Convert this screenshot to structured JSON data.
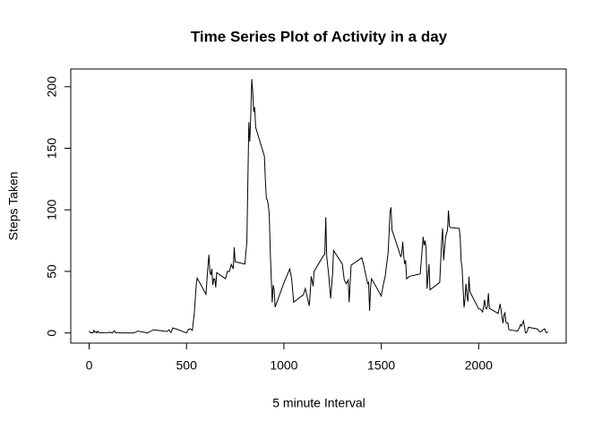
{
  "chart_data": {
    "type": "line",
    "title": "Time Series Plot of Activity in a day",
    "x_label": "5 minute Interval",
    "y_label": "Steps Taken",
    "color": "#000000",
    "x": [
      0,
      5,
      10,
      15,
      20,
      25,
      30,
      35,
      40,
      45,
      50,
      55,
      100,
      105,
      110,
      115,
      120,
      125,
      130,
      135,
      140,
      145,
      150,
      155,
      200,
      230,
      250,
      300,
      330,
      400,
      410,
      420,
      430,
      440,
      450,
      500,
      510,
      520,
      530,
      540,
      550,
      555,
      600,
      610,
      615,
      620,
      625,
      630,
      635,
      640,
      645,
      650,
      655,
      700,
      710,
      720,
      730,
      740,
      745,
      750,
      800,
      810,
      820,
      825,
      830,
      835,
      840,
      845,
      850,
      855,
      900,
      905,
      910,
      915,
      920,
      925,
      930,
      935,
      940,
      945,
      950,
      955,
      1000,
      1030,
      1040,
      1050,
      1100,
      1110,
      1130,
      1135,
      1140,
      1150,
      1155,
      1200,
      1210,
      1215,
      1220,
      1230,
      1240,
      1250,
      1255,
      1300,
      1310,
      1320,
      1330,
      1335,
      1345,
      1400,
      1410,
      1430,
      1435,
      1440,
      1445,
      1450,
      1500,
      1510,
      1520,
      1535,
      1540,
      1545,
      1550,
      1555,
      1600,
      1605,
      1610,
      1615,
      1620,
      1625,
      1630,
      1645,
      1700,
      1710,
      1715,
      1720,
      1725,
      1730,
      1735,
      1745,
      1750,
      1800,
      1805,
      1810,
      1815,
      1820,
      1830,
      1840,
      1845,
      1850,
      1855,
      1900,
      1905,
      1910,
      1915,
      1920,
      1925,
      1930,
      1935,
      1940,
      1945,
      1950,
      1955,
      2000,
      2010,
      2020,
      2025,
      2030,
      2035,
      2040,
      2045,
      2050,
      2055,
      2100,
      2110,
      2115,
      2120,
      2125,
      2130,
      2135,
      2140,
      2145,
      2150,
      2155,
      2200,
      2210,
      2215,
      2220,
      2230,
      2240,
      2245,
      2250,
      2255,
      2300,
      2315,
      2325,
      2330,
      2340,
      2345,
      2350,
      2355
    ],
    "values": [
      1.7,
      0.3,
      0.1,
      0.2,
      0.1,
      2.1,
      0.5,
      0.9,
      0,
      1.5,
      0.3,
      0.1,
      0.3,
      0.7,
      0.2,
      0.3,
      0,
      1.1,
      1.8,
      0.2,
      0.2,
      0.4,
      0.3,
      0,
      0,
      0,
      1.5,
      0,
      2.6,
      1.2,
      2.6,
      0.3,
      4.1,
      3.5,
      3.1,
      0,
      3,
      3.3,
      2.1,
      16,
      39.5,
      44.5,
      31.5,
      53.8,
      63.5,
      50,
      47,
      52,
      39,
      44,
      44,
      37,
      49,
      44,
      50,
      49.9,
      55.7,
      52,
      69.5,
      57.8,
      56,
      74.7,
      171.2,
      155.4,
      177.3,
      206.2,
      195.9,
      179.6,
      183.4,
      167,
      143.5,
      124,
      109,
      108,
      103.7,
      96,
      66.2,
      45.2,
      24.8,
      38.8,
      35,
      21,
      40.6,
      52,
      44,
      25,
      31,
      36,
      22,
      32,
      46,
      38,
      50,
      62,
      64,
      94,
      62,
      47,
      28,
      48,
      67,
      56,
      43,
      40,
      43,
      25,
      55,
      61,
      55,
      40,
      41,
      18,
      37,
      44,
      30,
      39,
      46,
      65,
      81,
      98.7,
      102,
      83.8,
      62,
      64,
      74,
      63,
      56,
      59,
      44,
      46,
      48,
      68,
      78,
      71,
      75,
      69,
      36,
      56,
      35,
      41,
      58,
      74.7,
      85,
      59,
      77.7,
      83.8,
      99.5,
      86.6,
      85.6,
      84.9,
      78,
      58,
      53,
      36,
      20.7,
      27.4,
      40,
      30,
      25.5,
      45.7,
      33.5,
      19.6,
      19.3,
      17,
      21,
      27,
      21,
      19.5,
      21.3,
      32.3,
      20,
      15.9,
      23.5,
      19,
      12.5,
      8,
      14.7,
      16.3,
      8.7,
      7.8,
      8.1,
      2.6,
      1.5,
      4.6,
      6.8,
      5.7,
      9.8,
      0.3,
      0.1,
      1.6,
      4.6,
      3.3,
      0.8,
      1.6,
      2.6,
      3.3,
      0.6,
      0.2,
      1.1
    ],
    "xlim": [
      -94.2,
      2449.2
    ],
    "ylim": [
      -8.25,
      214.4
    ],
    "xticks": [
      0,
      500,
      1000,
      1500,
      2000
    ],
    "yticks": [
      0,
      50,
      100,
      150,
      200
    ]
  }
}
